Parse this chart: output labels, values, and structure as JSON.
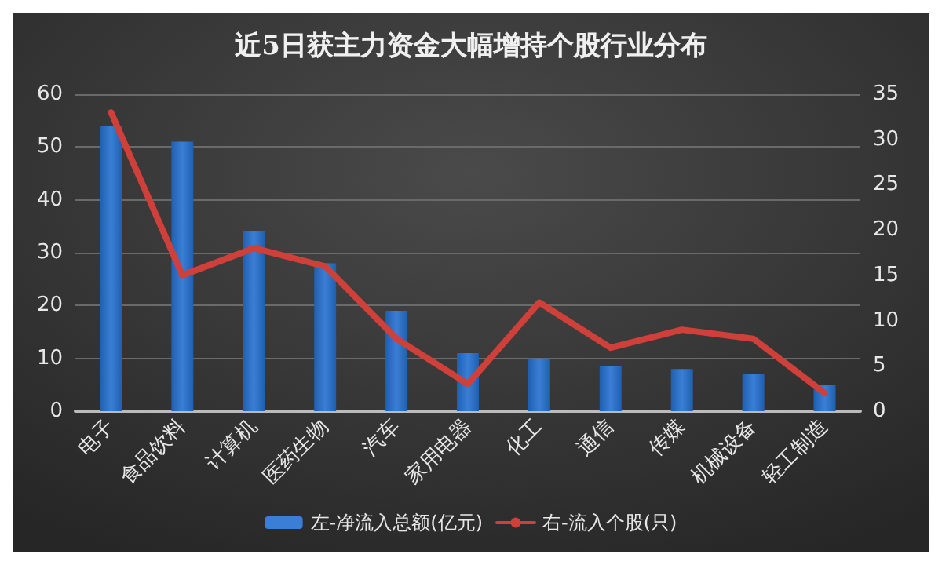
{
  "chart_data": {
    "type": "bar",
    "title": "近5日获主力资金大幅增持个股行业分布",
    "categories": [
      "电子",
      "食品饮料",
      "计算机",
      "医药生物",
      "汽车",
      "家用电器",
      "化工",
      "通信",
      "传媒",
      "机械设备",
      "轻工制造"
    ],
    "series": [
      {
        "name": "左-净流入总额(亿元)",
        "color": "#3a7fd5",
        "values": [
          54,
          51,
          34,
          28,
          19,
          11,
          10,
          8.5,
          8,
          7,
          5
        ]
      },
      {
        "name": "右-流入个股(只)",
        "type": "line",
        "axis": "y2",
        "color": "#d0403a",
        "values": [
          33,
          15,
          18,
          16,
          8,
          3,
          12,
          7,
          9,
          8,
          2
        ]
      }
    ],
    "ylim": [
      0,
      60
    ],
    "yticks": [
      0,
      10,
      20,
      30,
      40,
      50,
      60
    ],
    "y2lim": [
      0,
      35
    ],
    "y2ticks": [
      0,
      5,
      10,
      15,
      20,
      25,
      30,
      35
    ],
    "grid": "y",
    "legend": "bottom",
    "marker": "none",
    "line_style": "solid"
  }
}
